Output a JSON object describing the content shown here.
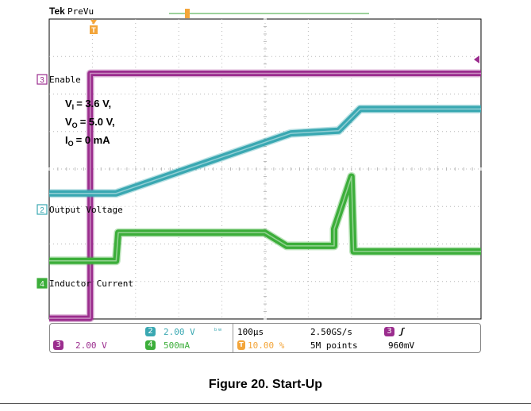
{
  "header": {
    "brand": "Tek",
    "mode": "PreVu"
  },
  "channels": {
    "enable": {
      "number": "3",
      "label": "Enable",
      "color": "#9b2d8e"
    },
    "output": {
      "number": "2",
      "label": "Output Voltage",
      "color": "#3aa8b2"
    },
    "inductor": {
      "number": "4",
      "label": "Inductor Current",
      "color": "#3cae3a"
    }
  },
  "conditions": {
    "vi": "= 3.6 V,",
    "vo": "= 5.0 V,",
    "io": "= 0 mA"
  },
  "status": {
    "ch3_scale": "2.00 V",
    "ch2_scale": "2.00 V",
    "ch4_scale": "500mA",
    "timebase": "100µs",
    "trigger_position": "10.00 %",
    "sample_rate": "2.50GS/s",
    "record_length": "5M points",
    "trigger_channel": "3",
    "trigger_level": "960mV"
  },
  "caption": "Figure 20. Start-Up",
  "chart_data": {
    "type": "line",
    "x_divisions": 10,
    "y_divisions": 8,
    "time_per_div_us": 100,
    "series": [
      {
        "name": "Enable",
        "color": "#9b2d8e",
        "x": [
          0,
          0.95,
          0.95,
          10
        ],
        "y": [
          0.02,
          0.02,
          6.55,
          6.55
        ]
      },
      {
        "name": "Output Voltage",
        "color": "#3aa8b2",
        "x": [
          0,
          1.55,
          5.6,
          6.7,
          7.2,
          10
        ],
        "y": [
          3.35,
          3.35,
          4.95,
          5.02,
          5.6,
          5.6
        ]
      },
      {
        "name": "Inductor Current",
        "color": "#3cae3a",
        "x": [
          0,
          1.55,
          1.6,
          5.0,
          5.5,
          6.6,
          6.6,
          7.0,
          7.05,
          10
        ],
        "y": [
          1.55,
          1.55,
          2.3,
          2.3,
          1.95,
          1.95,
          2.4,
          3.8,
          1.8,
          1.8
        ]
      }
    ]
  }
}
